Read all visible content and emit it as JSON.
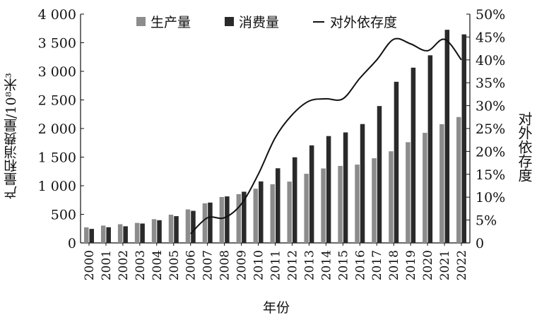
{
  "chart_data": {
    "type": "bar",
    "categories": [
      "2000",
      "2001",
      "2002",
      "2003",
      "2004",
      "2005",
      "2006",
      "2007",
      "2008",
      "2009",
      "2010",
      "2011",
      "2012",
      "2013",
      "2014",
      "2015",
      "2016",
      "2017",
      "2018",
      "2019",
      "2020",
      "2021",
      "2022"
    ],
    "series": [
      {
        "name": "生产量",
        "type": "bar",
        "axis": "left",
        "color": "#8c8c8c",
        "values": [
          272,
          303,
          327,
          350,
          415,
          493,
          586,
          692,
          803,
          853,
          948,
          1026,
          1072,
          1209,
          1302,
          1346,
          1369,
          1480,
          1602,
          1761,
          1925,
          2076,
          2201
        ]
      },
      {
        "name": "消费量",
        "type": "bar",
        "axis": "left",
        "color": "#2a2a2a",
        "values": [
          245,
          274,
          291,
          339,
          397,
          468,
          561,
          705,
          813,
          895,
          1075,
          1305,
          1497,
          1705,
          1868,
          1932,
          2078,
          2393,
          2817,
          3064,
          3280,
          3726,
          3646
        ]
      },
      {
        "name": "对外依存度",
        "type": "line",
        "axis": "right",
        "color": "#111111",
        "values": [
          null,
          null,
          null,
          null,
          null,
          null,
          2,
          5.5,
          5.5,
          8.5,
          15,
          23,
          28,
          31,
          31.5,
          31.5,
          36,
          40,
          44.5,
          43.5,
          42,
          44.5,
          40
        ]
      }
    ],
    "ylabel": "产量和消费量/10⁸米³",
    "ylabel_right": "对外依存度",
    "xlabel": "年份",
    "ylim": [
      0,
      4000
    ],
    "ylim_right": [
      0,
      50
    ],
    "yticks": [
      "0",
      "500",
      "1 000",
      "1 500",
      "2 000",
      "2 500",
      "3 000",
      "3 500",
      "4 000"
    ],
    "yticks_right": [
      "0",
      "5%",
      "10%",
      "15%",
      "20%",
      "25%",
      "30%",
      "35%",
      "40%",
      "45%",
      "50%"
    ],
    "legend": [
      "生产量",
      "消费量",
      "对外依存度"
    ],
    "legend_position": "top",
    "grid": false
  }
}
